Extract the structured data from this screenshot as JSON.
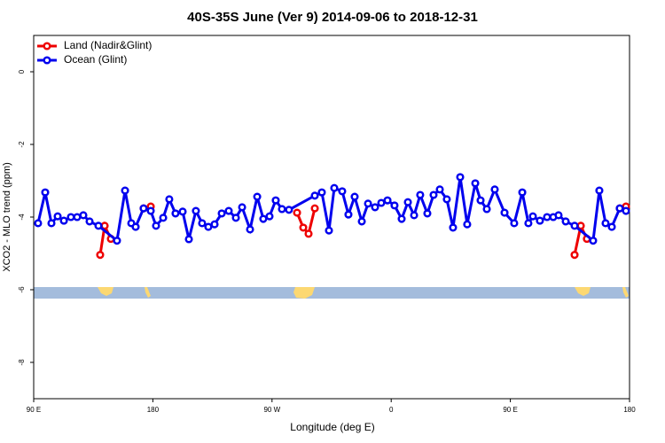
{
  "chart_data": {
    "type": "line",
    "title": "40S-35S June (Ver 9)   2014-09-06 to 2018-12-31",
    "xlabel": "Longitude (deg E)",
    "ylabel": "XCO2 - MLO trend (ppm)",
    "xlim": [
      90,
      540
    ],
    "ylim": [
      -9,
      1
    ],
    "xticks": [
      {
        "value": 90,
        "label": "90 E"
      },
      180,
      {
        "value": 270,
        "label": "90 W"
      },
      {
        "value": 360,
        "label": "0"
      },
      {
        "value": 450,
        "label": "90 E"
      },
      {
        "value": 540,
        "label": "180"
      }
    ],
    "yticks": [
      -8,
      -6,
      -4,
      -2,
      0
    ],
    "legend": "upper left",
    "series": [
      {
        "name": "Land (Nadir&Glint)",
        "color": "#ee0000",
        "x": [
          140.2,
          143.6,
          148.3,
          null,
          173.0,
          178.4,
          null,
          288.9,
          293.6,
          297.6,
          302.3,
          null,
          498.5,
          503.2,
          507.8,
          null,
          532.6,
          537.3
        ],
        "values": [
          -5.04,
          -4.24,
          -4.6,
          null,
          -3.76,
          -3.71,
          null,
          -3.88,
          -4.29,
          -4.46,
          -3.76,
          null,
          -5.04,
          -4.24,
          -4.6,
          null,
          -3.76,
          -3.71
        ]
      },
      {
        "name": "Ocean (Glint)",
        "color": "#0000ee",
        "x": [
          93.3,
          98.7,
          103.4,
          108.1,
          112.8,
          118.1,
          122.8,
          127.5,
          132.2,
          138.9,
          152.9,
          159.0,
          163.7,
          167.0,
          173.0,
          178.4,
          182.4,
          187.8,
          192.4,
          197.1,
          202.5,
          207.2,
          212.5,
          217.2,
          221.9,
          226.6,
          232.0,
          237.3,
          242.7,
          247.4,
          253.4,
          258.8,
          263.4,
          268.1,
          272.8,
          277.5,
          282.8,
          302.3,
          307.6,
          313.0,
          317.0,
          323.0,
          327.7,
          332.4,
          337.8,
          342.5,
          347.8,
          352.5,
          357.2,
          362.5,
          367.9,
          372.6,
          377.3,
          381.9,
          387.3,
          392.0,
          396.7,
          402.0,
          406.7,
          412.1,
          417.4,
          423.5,
          427.5,
          432.2,
          438.2,
          445.6,
          452.9,
          459.0,
          463.6,
          467.0,
          472.3,
          477.7,
          482.4,
          486.4,
          491.8,
          498.5,
          512.5,
          517.2,
          521.9,
          526.6,
          532.6,
          537.3
        ],
        "values": [
          -4.17,
          -3.32,
          -4.17,
          -3.98,
          -4.1,
          -4.0,
          -4.0,
          -3.95,
          -4.12,
          -4.24,
          -4.65,
          -3.27,
          -4.17,
          -4.27,
          -3.76,
          -3.83,
          -4.24,
          -4.02,
          -3.51,
          -3.9,
          -3.85,
          -4.61,
          -3.83,
          -4.17,
          -4.27,
          -4.2,
          -3.9,
          -3.83,
          -4.02,
          -3.73,
          -4.34,
          -3.44,
          -4.05,
          -3.98,
          -3.54,
          -3.78,
          -3.8,
          -3.41,
          -3.32,
          -4.37,
          -3.2,
          -3.29,
          -3.93,
          -3.44,
          -4.12,
          -3.63,
          -3.73,
          -3.61,
          -3.54,
          -3.68,
          -4.05,
          -3.59,
          -3.95,
          -3.39,
          -3.9,
          -3.39,
          -3.24,
          -3.51,
          -4.29,
          -2.9,
          -4.2,
          -3.07,
          -3.54,
          -3.78,
          -3.24,
          -3.88,
          -4.17,
          -3.32,
          -4.17,
          -3.98,
          -4.1,
          -4.0,
          -4.0,
          -3.95,
          -4.12,
          -4.24,
          -4.65,
          -3.27,
          -4.17,
          -4.27,
          -3.76,
          -3.83
        ]
      }
    ]
  }
}
